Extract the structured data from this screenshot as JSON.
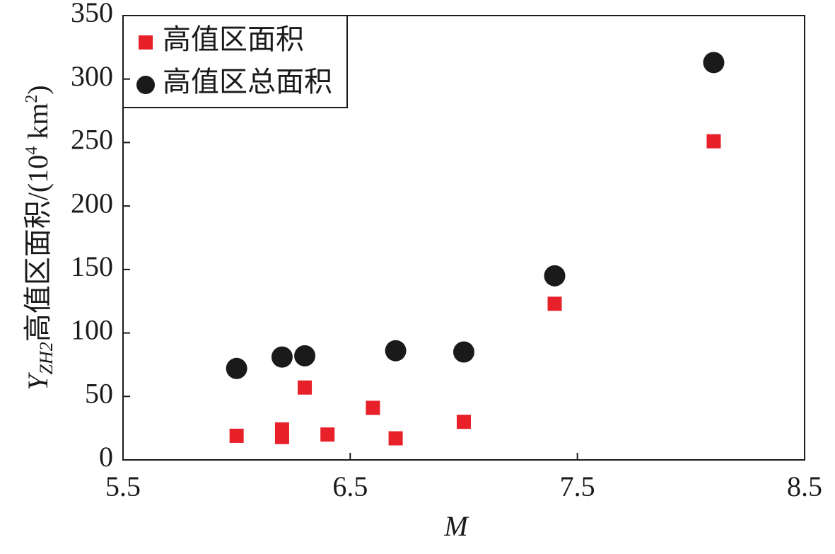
{
  "chart_data": {
    "type": "scatter",
    "xlabel": "M",
    "ylabel": [
      "Y",
      "ZH2",
      "高值区面积/(10",
      "4",
      " km",
      "2",
      ")"
    ],
    "xlim": [
      5.5,
      8.5
    ],
    "xticks": [
      5.5,
      6.5,
      7.5,
      8.5
    ],
    "ylim": [
      0,
      350
    ],
    "yticks": [
      0,
      50,
      100,
      150,
      200,
      250,
      300,
      350
    ],
    "legend": "upper left",
    "series": [
      {
        "name": "高值区面积",
        "color": "#e8202a",
        "marker": "square",
        "x": [
          6.0,
          6.2,
          6.2,
          6.3,
          6.4,
          6.6,
          6.7,
          7.0,
          7.4,
          8.1
        ],
        "values": [
          19,
          24,
          18,
          57,
          20,
          41,
          17,
          30,
          123,
          251
        ]
      },
      {
        "name": "高值区总面积",
        "color": "#1a1a1a",
        "marker": "circle",
        "x": [
          6.0,
          6.2,
          6.3,
          6.7,
          7.0,
          7.4,
          8.1
        ],
        "values": [
          72,
          81,
          82,
          86,
          85,
          145,
          313
        ]
      }
    ]
  }
}
